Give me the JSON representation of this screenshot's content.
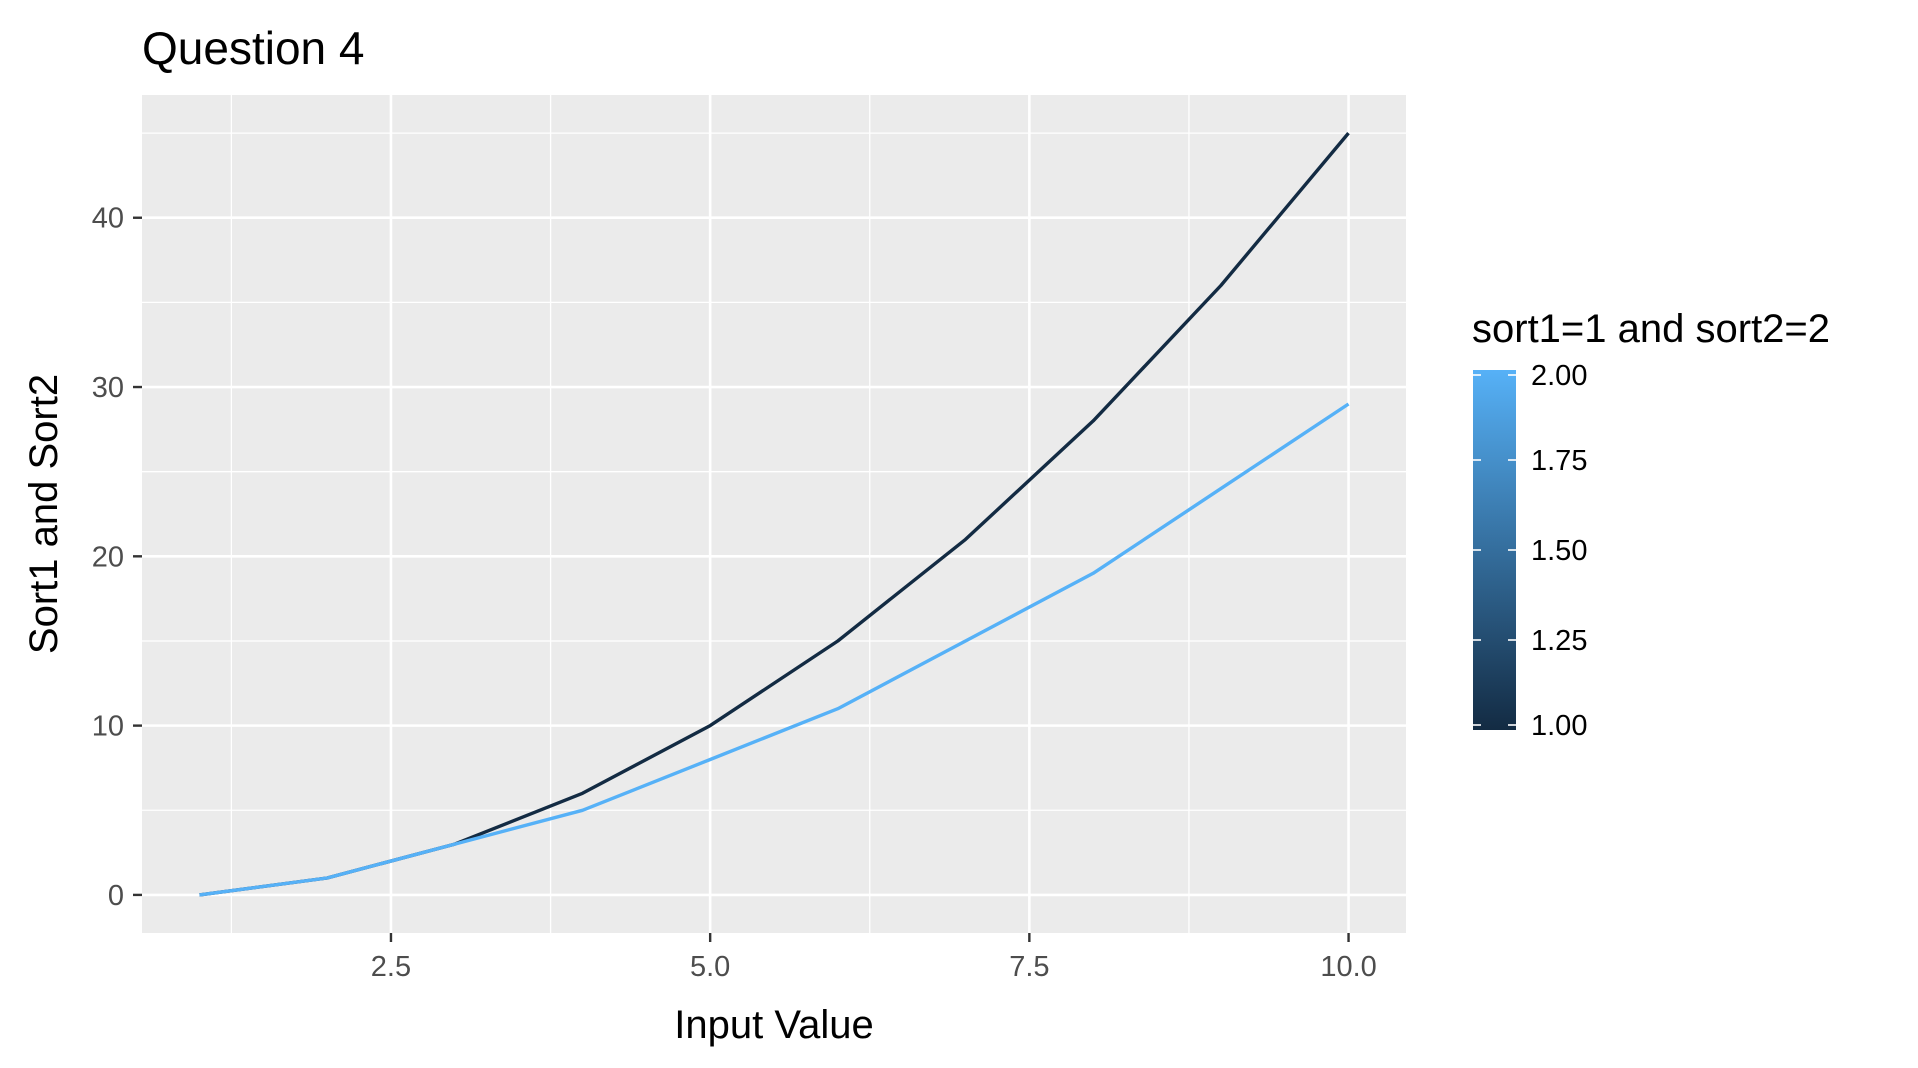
{
  "chart_data": {
    "type": "line",
    "title": "Question 4",
    "xlabel": "Input Value",
    "ylabel": "Sort1 and Sort2",
    "xlim": [
      0.55,
      10.45
    ],
    "ylim": [
      -2.25,
      47.25
    ],
    "x_ticks": [
      2.5,
      5.0,
      7.5,
      10.0
    ],
    "x_tick_labels": [
      "2.5",
      "5.0",
      "7.5",
      "10.0"
    ],
    "y_ticks": [
      0,
      10,
      20,
      30,
      40
    ],
    "y_tick_labels": [
      "0",
      "10",
      "20",
      "30",
      "40"
    ],
    "grid": true,
    "background": "#ebebeb",
    "series": [
      {
        "color_value": 1.0,
        "color": "#132b43",
        "x": [
          1,
          2,
          3,
          4,
          5,
          6,
          7,
          8,
          9,
          10
        ],
        "values": [
          0,
          1,
          3,
          6,
          10,
          15,
          21,
          28,
          36,
          45
        ]
      },
      {
        "color_value": 2.0,
        "color": "#56b1f7",
        "x": [
          1,
          2,
          3,
          4,
          5,
          6,
          7,
          8,
          9,
          10
        ],
        "values": [
          0,
          1,
          3,
          5,
          8,
          11,
          15,
          19,
          24,
          29
        ]
      }
    ],
    "legend": {
      "title": "sort1=1 and sort2=2",
      "position": "right",
      "type": "colorbar",
      "range": [
        1.0,
        2.0
      ],
      "low_color": "#132b43",
      "high_color": "#56b1f7",
      "breaks": [
        1.0,
        1.25,
        1.5,
        1.75,
        2.0
      ],
      "labels": [
        "1.00",
        "1.25",
        "1.50",
        "1.75",
        "2.00"
      ]
    }
  }
}
